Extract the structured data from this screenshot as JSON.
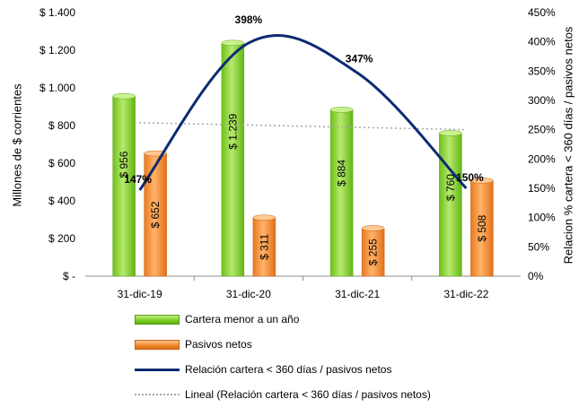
{
  "chart_data": {
    "type": "bar",
    "categories": [
      "31-dic-19",
      "31-dic-20",
      "31-dic-21",
      "31-dic-22"
    ],
    "series": [
      {
        "name": "Cartera menor a un año",
        "values": [
          956,
          1239,
          884,
          760
        ],
        "labels": [
          "$ 956",
          "$ 1.239",
          "$ 884",
          "$ 760"
        ],
        "color": "#7ccf26",
        "axis": "left"
      },
      {
        "name": "Pasivos netos",
        "values": [
          652,
          311,
          255,
          508
        ],
        "labels": [
          "$ 652",
          "$ 311",
          "$ 255",
          "$ 508"
        ],
        "color": "#f28a2e",
        "axis": "right-bar"
      },
      {
        "name": "Relación cartera < 360 días / pasivos netos",
        "type": "line",
        "values": [
          147,
          398,
          347,
          150
        ],
        "labels": [
          "147%",
          "398%",
          "347%",
          "150%"
        ],
        "color": "#0d2a73",
        "axis": "right"
      },
      {
        "name": "Lineal (Relación cartera < 360 días / pasivos netos)",
        "type": "trendline",
        "values": [
          262,
          258,
          254,
          250
        ],
        "color": "#a8a8a8",
        "axis": "right"
      }
    ],
    "ylabel": "Millones de $ corrientes",
    "y2label": "Relacion % cartera < 360 días / pasivos netos",
    "ylim": [
      0,
      1400
    ],
    "y2lim": [
      0,
      450
    ],
    "yticks": [
      "$ -",
      "$ 200",
      "$ 400",
      "$ 600",
      "$ 800",
      "$ 1.000",
      "$ 1.200",
      "$ 1.400"
    ],
    "y2ticks": [
      "0%",
      "50%",
      "100%",
      "150%",
      "200%",
      "250%",
      "300%",
      "350%",
      "400%",
      "450%"
    ],
    "grid": false,
    "legend_position": "bottom"
  }
}
